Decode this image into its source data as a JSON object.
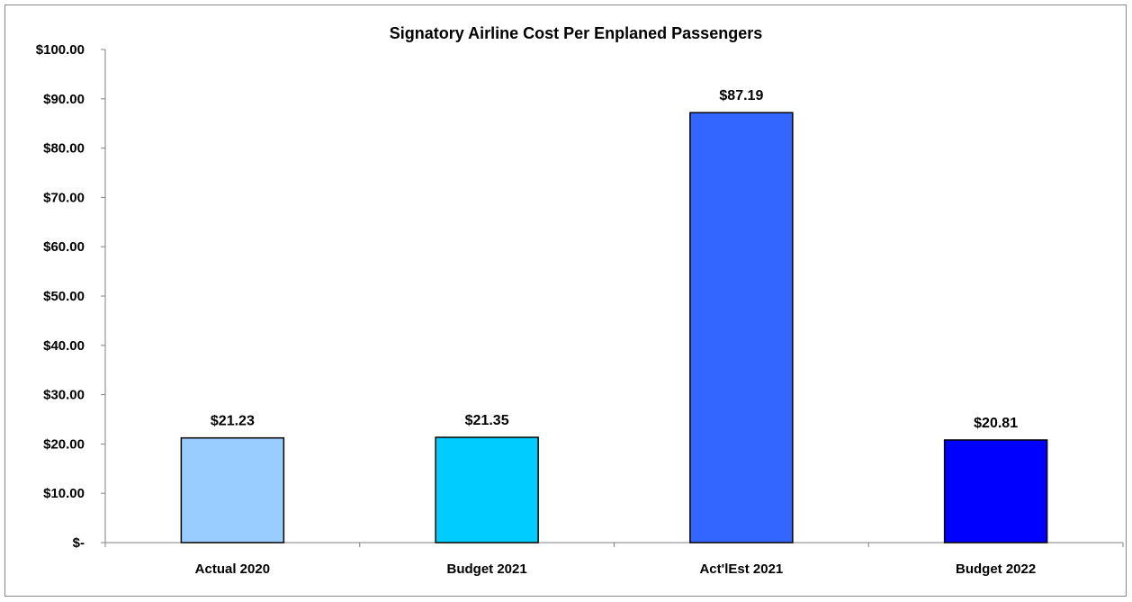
{
  "chart_data": {
    "type": "bar",
    "title": "Signatory Airline Cost Per Enplaned Passengers",
    "categories": [
      "Actual 2020",
      "Budget 2021",
      "Act'lEst 2021",
      "Budget 2022"
    ],
    "values": [
      21.23,
      21.35,
      87.19,
      20.81
    ],
    "data_labels": [
      "$21.23",
      "$21.35",
      "$87.19",
      "$20.81"
    ],
    "bar_colors": [
      "#99CCFF",
      "#00CCFF",
      "#3366FF",
      "#0000FF"
    ],
    "ylim": [
      0,
      100
    ],
    "yticks": [
      0,
      10,
      20,
      30,
      40,
      50,
      60,
      70,
      80,
      90,
      100
    ],
    "ytick_labels": [
      "$-",
      "$10.00",
      "$20.00",
      "$30.00",
      "$40.00",
      "$50.00",
      "$60.00",
      "$70.00",
      "$80.00",
      "$90.00",
      "$100.00"
    ],
    "xlabel": "",
    "ylabel": "",
    "grid": false,
    "legend": "none"
  }
}
